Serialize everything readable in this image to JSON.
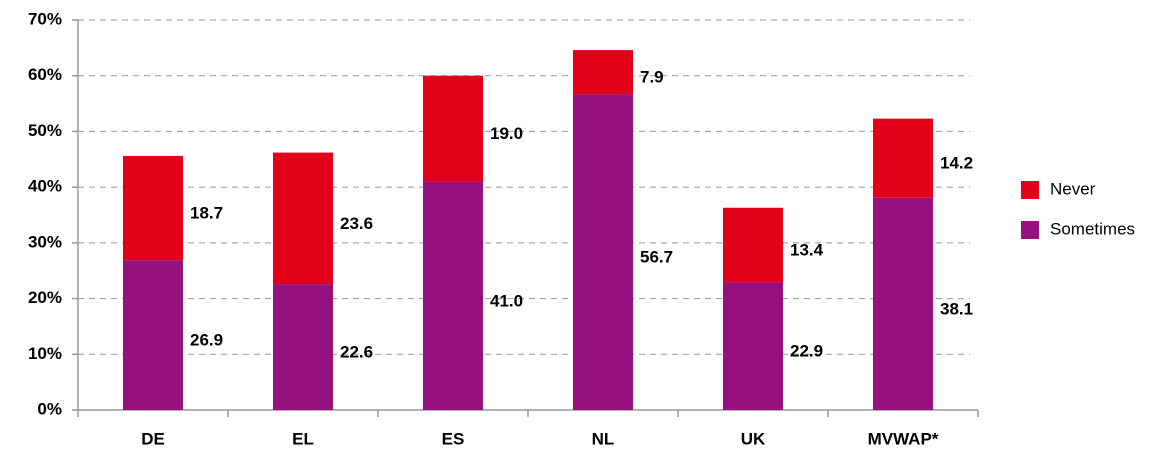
{
  "chart_data": {
    "type": "stacked_bar",
    "categories": [
      "DE",
      "EL",
      "ES",
      "NL",
      "UK",
      "MVWAP*"
    ],
    "series": [
      {
        "name": "Sometimes",
        "color": "#94117e",
        "values": [
          26.9,
          22.6,
          41.0,
          56.7,
          22.9,
          38.1
        ],
        "value_labels": [
          "26.9",
          "22.6",
          "41.0",
          "56.7",
          "22.9",
          "38.1"
        ]
      },
      {
        "name": "Never",
        "color": "#e2001a",
        "values": [
          18.7,
          23.6,
          19.0,
          7.9,
          13.4,
          14.2
        ],
        "value_labels": [
          "18.7",
          "23.6",
          "19.0",
          "7.9",
          "13.4",
          "14.2"
        ]
      }
    ],
    "ylim": [
      0,
      70
    ],
    "yticks": [
      {
        "value": 0,
        "label": "0%"
      },
      {
        "value": 10,
        "label": "10%"
      },
      {
        "value": 20,
        "label": "20%"
      },
      {
        "value": 30,
        "label": "30%"
      },
      {
        "value": 40,
        "label": "40%"
      },
      {
        "value": 50,
        "label": "50%"
      },
      {
        "value": 60,
        "label": "60%"
      },
      {
        "value": 70,
        "label": "70%"
      }
    ],
    "grid": true,
    "legend": "right"
  }
}
